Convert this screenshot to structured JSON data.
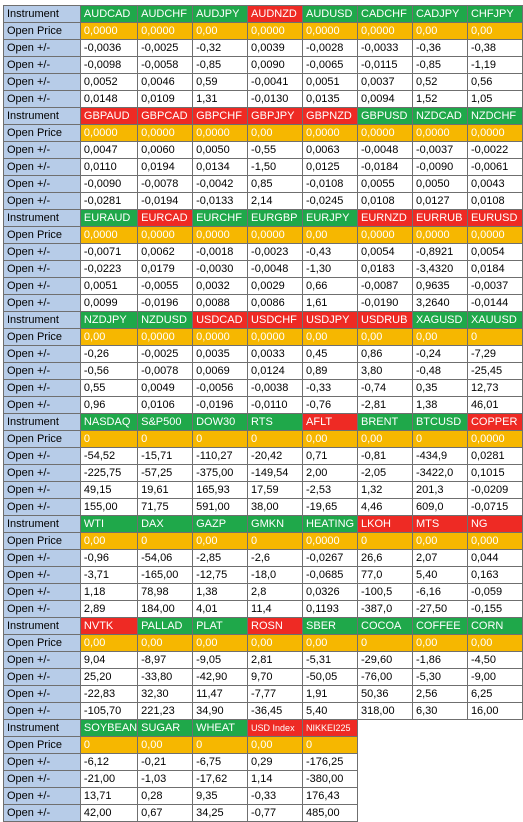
{
  "colors": {
    "green": "#1fa84a",
    "red": "#ee2a24",
    "orange": "#f6b700",
    "label_blue": "#b7cce8"
  },
  "blocks": [
    {
      "header_label": "Instrument",
      "open_price_label": "Open Price",
      "row_label": "Open +/-",
      "instruments": [
        {
          "name": "AUDCAD",
          "color": "green",
          "open": "0,0000",
          "changes": [
            "-0,0036",
            "-0,0098",
            "0,0052",
            "0,0148"
          ]
        },
        {
          "name": "AUDCHF",
          "color": "green",
          "open": "0,0000",
          "changes": [
            "-0,0025",
            "-0,0058",
            "0,0046",
            "0,0109"
          ]
        },
        {
          "name": "AUDJPY",
          "color": "green",
          "open": "0,00",
          "changes": [
            "-0,32",
            "-0,85",
            "0,59",
            "1,31"
          ]
        },
        {
          "name": "AUDNZD",
          "color": "red",
          "open": "0,0000",
          "changes": [
            "0,0039",
            "0,0090",
            "-0,0041",
            "-0,0130"
          ]
        },
        {
          "name": "AUDUSD",
          "color": "green",
          "open": "0,0000",
          "changes": [
            "-0,0028",
            "-0,0065",
            "0,0051",
            "0,0135"
          ]
        },
        {
          "name": "CADCHF",
          "color": "green",
          "open": "0,0000",
          "changes": [
            "-0,0033",
            "-0,0115",
            "0,0037",
            "0,0094"
          ]
        },
        {
          "name": "CADJPY",
          "color": "green",
          "open": "0,00",
          "changes": [
            "-0,36",
            "-0,85",
            "0,52",
            "1,52"
          ]
        },
        {
          "name": "CHFJPY",
          "color": "green",
          "open": "0,00",
          "changes": [
            "-0,38",
            "-1,19",
            "0,56",
            "1,05"
          ]
        }
      ]
    },
    {
      "header_label": "Instrument",
      "open_price_label": "Open Price",
      "row_label": "Open +/-",
      "instruments": [
        {
          "name": "GBPAUD",
          "color": "red",
          "open": "0,0000",
          "changes": [
            "0,0047",
            "0,0110",
            "-0,0090",
            "-0,0281"
          ]
        },
        {
          "name": "GBPCAD",
          "color": "red",
          "open": "0,0000",
          "changes": [
            "0,0060",
            "0,0194",
            "-0,0078",
            "-0,0194"
          ]
        },
        {
          "name": "GBPCHF",
          "color": "red",
          "open": "0,0000",
          "changes": [
            "0,0050",
            "0,0134",
            "-0,0042",
            "-0,0133"
          ]
        },
        {
          "name": "GBPJPY",
          "color": "red",
          "open": "0,00",
          "changes": [
            "-0,55",
            "-1,50",
            "0,85",
            "2,14"
          ]
        },
        {
          "name": "GBPNZD",
          "color": "red",
          "open": "0,0000",
          "changes": [
            "0,0063",
            "0,0125",
            "-0,0108",
            "-0,0245"
          ]
        },
        {
          "name": "GBPUSD",
          "color": "green",
          "open": "0,0000",
          "changes": [
            "-0,0048",
            "-0,0184",
            "0,0055",
            "0,0108"
          ]
        },
        {
          "name": "NZDCAD",
          "color": "green",
          "open": "0,0000",
          "changes": [
            "-0,0037",
            "-0,0090",
            "0,0050",
            "0,0127"
          ]
        },
        {
          "name": "NZDCHF",
          "color": "green",
          "open": "0,0000",
          "changes": [
            "-0,0022",
            "-0,0061",
            "0,0043",
            "0,0108"
          ]
        }
      ]
    },
    {
      "header_label": "Instrument",
      "open_price_label": "Open Price",
      "row_label": "Open +/-",
      "instruments": [
        {
          "name": "EURAUD",
          "color": "green",
          "open": "0,0000",
          "changes": [
            "-0,0071",
            "-0,0223",
            "0,0051",
            "0,0099"
          ]
        },
        {
          "name": "EURCAD",
          "color": "red",
          "open": "0,0000",
          "changes": [
            "0,0062",
            "0,0179",
            "-0,0055",
            "-0,0196"
          ]
        },
        {
          "name": "EURCHF",
          "color": "green",
          "open": "0,0000",
          "changes": [
            "-0,0018",
            "-0,0030",
            "0,0032",
            "0,0088"
          ]
        },
        {
          "name": "EURGBP",
          "color": "green",
          "open": "0,0000",
          "changes": [
            "-0,0023",
            "-0,0048",
            "0,0029",
            "0,0086"
          ]
        },
        {
          "name": "EURJPY",
          "color": "green",
          "open": "0,00",
          "changes": [
            "-0,43",
            "-1,30",
            "0,66",
            "1,61"
          ]
        },
        {
          "name": "EURNZD",
          "color": "red",
          "open": "0,0000",
          "changes": [
            "0,0054",
            "0,0183",
            "-0,0087",
            "-0,0190"
          ]
        },
        {
          "name": "EURRUB",
          "color": "red",
          "open": "0,0000",
          "changes": [
            "-0,8921",
            "-3,4320",
            "0,9635",
            "3,2640"
          ]
        },
        {
          "name": "EURUSD",
          "color": "red",
          "open": "0,0000",
          "changes": [
            "0,0054",
            "0,0184",
            "-0,0037",
            "-0,0144"
          ]
        }
      ]
    },
    {
      "header_label": "Instrument",
      "open_price_label": "Open Price",
      "row_label": "Open +/-",
      "instruments": [
        {
          "name": "NZDJPY",
          "color": "green",
          "open": "0,00",
          "changes": [
            "-0,26",
            "-0,56",
            "0,55",
            "0,96"
          ]
        },
        {
          "name": "NZDUSD",
          "color": "green",
          "open": "0,0000",
          "changes": [
            "-0,0025",
            "-0,0078",
            "0,0049",
            "0,0106"
          ]
        },
        {
          "name": "USDCAD",
          "color": "red",
          "open": "0,0000",
          "changes": [
            "0,0035",
            "0,0069",
            "-0,0056",
            "-0,0196"
          ]
        },
        {
          "name": "USDCHF",
          "color": "red",
          "open": "0,0000",
          "changes": [
            "0,0033",
            "0,0124",
            "-0,0038",
            "-0,0110"
          ]
        },
        {
          "name": "USDJPY",
          "color": "red",
          "open": "0,00",
          "changes": [
            "0,45",
            "0,89",
            "-0,33",
            "-0,76"
          ]
        },
        {
          "name": "USDRUB",
          "color": "red",
          "open": "0,00",
          "changes": [
            "0,86",
            "3,80",
            "-0,74",
            "-2,81"
          ]
        },
        {
          "name": "XAGUSD",
          "color": "green",
          "open": "0,00",
          "changes": [
            "-0,24",
            "-0,48",
            "0,35",
            "1,38"
          ]
        },
        {
          "name": "XAUUSD",
          "color": "green",
          "open": "0",
          "changes": [
            "-7,29",
            "-25,45",
            "12,73",
            "46,01"
          ]
        }
      ]
    },
    {
      "header_label": "Instrument",
      "open_price_label": "Open Price",
      "row_label": "Open +/-",
      "instruments": [
        {
          "name": "NASDAQ",
          "color": "green",
          "open": "0",
          "changes": [
            "-54,52",
            "-225,75",
            "49,15",
            "155,00"
          ]
        },
        {
          "name": "S&P500",
          "color": "green",
          "open": "0",
          "changes": [
            "-15,71",
            "-57,25",
            "19,61",
            "71,75"
          ]
        },
        {
          "name": "DOW30",
          "color": "green",
          "open": "0",
          "changes": [
            "-110,27",
            "-375,00",
            "165,93",
            "591,00"
          ]
        },
        {
          "name": "RTS",
          "color": "green",
          "open": "0",
          "changes": [
            "-20,42",
            "-149,54",
            "17,59",
            "38,00"
          ]
        },
        {
          "name": "AFLT",
          "color": "red",
          "open": "0,00",
          "changes": [
            "0,71",
            "2,00",
            "-2,53",
            "-19,65"
          ]
        },
        {
          "name": "BRENT",
          "color": "green",
          "open": "0,00",
          "changes": [
            "-0,81",
            "-2,05",
            "1,32",
            "4,46"
          ]
        },
        {
          "name": "BTCUSD",
          "color": "green",
          "open": "0",
          "changes": [
            "-434,9",
            "-3422,0",
            "201,3",
            "609,0"
          ]
        },
        {
          "name": "COPPER",
          "color": "red",
          "open": "0,0000",
          "changes": [
            "0,0281",
            "0,1015",
            "-0,0209",
            "-0,0715"
          ]
        }
      ]
    },
    {
      "header_label": "Instrument",
      "open_price_label": "Open Price",
      "row_label": "Open +/-",
      "instruments": [
        {
          "name": "WTI",
          "color": "green",
          "open": "0,00",
          "changes": [
            "-0,96",
            "-3,71",
            "1,18",
            "2,89"
          ]
        },
        {
          "name": "DAX",
          "color": "green",
          "open": "0",
          "changes": [
            "-54,06",
            "-165,00",
            "78,98",
            "184,00"
          ]
        },
        {
          "name": "GAZP",
          "color": "green",
          "open": "0,00",
          "changes": [
            "-2,85",
            "-12,75",
            "1,38",
            "4,01"
          ]
        },
        {
          "name": "GMKN",
          "color": "green",
          "open": "0",
          "changes": [
            "-2,6",
            "-18,0",
            "2,8",
            "11,4"
          ]
        },
        {
          "name": "HEATING",
          "color": "green",
          "open": "0,0000",
          "changes": [
            "-0,0267",
            "-0,0685",
            "0,0326",
            "0,1193"
          ]
        },
        {
          "name": "LKOH",
          "color": "red",
          "open": "0",
          "changes": [
            "26,6",
            "77,0",
            "-100,5",
            "-387,0"
          ]
        },
        {
          "name": "MTS",
          "color": "red",
          "open": "0,00",
          "changes": [
            "2,07",
            "5,40",
            "-6,16",
            "-27,50"
          ]
        },
        {
          "name": "NG",
          "color": "red",
          "open": "0,000",
          "changes": [
            "0,044",
            "0,163",
            "-0,059",
            "-0,155"
          ]
        }
      ]
    },
    {
      "header_label": "Instrument",
      "open_price_label": "Open Price",
      "row_label": "Open +/-",
      "instruments": [
        {
          "name": "NVTK",
          "color": "red",
          "open": "0,00",
          "changes": [
            "9,04",
            "25,20",
            "-22,83",
            "-105,70"
          ]
        },
        {
          "name": "PALLAD",
          "color": "green",
          "open": "0,00",
          "changes": [
            "-8,97",
            "-33,80",
            "32,30",
            "221,23"
          ]
        },
        {
          "name": "PLAT",
          "color": "green",
          "open": "0,00",
          "changes": [
            "-9,05",
            "-42,90",
            "11,47",
            "34,90"
          ]
        },
        {
          "name": "ROSN",
          "color": "red",
          "open": "0,00",
          "changes": [
            "2,81",
            "9,70",
            "-7,77",
            "-36,45"
          ]
        },
        {
          "name": "SBER",
          "color": "green",
          "open": "0,00",
          "changes": [
            "-5,31",
            "-50,05",
            "1,91",
            "5,40"
          ]
        },
        {
          "name": "COCOA",
          "color": "green",
          "open": "0",
          "changes": [
            "-29,60",
            "-76,00",
            "50,36",
            "318,00"
          ]
        },
        {
          "name": "COFFEE",
          "color": "green",
          "open": "0,00",
          "changes": [
            "-1,86",
            "-5,30",
            "2,56",
            "6,30"
          ]
        },
        {
          "name": "CORN",
          "color": "green",
          "open": "0,00",
          "changes": [
            "-4,50",
            "-9,00",
            "6,25",
            "16,00"
          ]
        }
      ]
    },
    {
      "header_label": "Instrument",
      "open_price_label": "Open Price",
      "row_label": "Open +/-",
      "instruments": [
        {
          "name": "SOYBEAN",
          "color": "green",
          "open": "0",
          "changes": [
            "-6,12",
            "-21,00",
            "13,71",
            "42,00"
          ]
        },
        {
          "name": "SUGAR",
          "color": "green",
          "open": "0,00",
          "changes": [
            "-0,21",
            "-1,03",
            "0,28",
            "0,67"
          ]
        },
        {
          "name": "WHEAT",
          "color": "green",
          "open": "0",
          "changes": [
            "-6,75",
            "-17,62",
            "9,35",
            "34,25"
          ]
        },
        {
          "name": "USD Index",
          "color": "red",
          "open": "0,00",
          "changes": [
            "0,29",
            "1,14",
            "-0,33",
            "-0,77"
          ]
        },
        {
          "name": "NIKKEI225",
          "color": "red",
          "open": "0",
          "changes": [
            "-176,25",
            "-380,00",
            "176,43",
            "485,00"
          ]
        }
      ]
    }
  ]
}
